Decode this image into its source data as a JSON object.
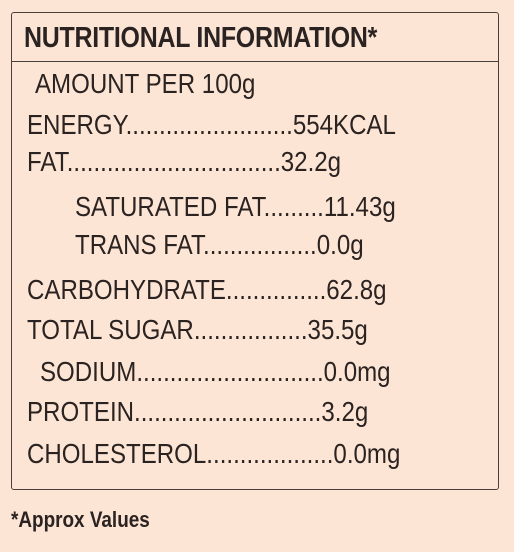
{
  "label": {
    "title": "NUTRITIONAL INFORMATION*",
    "amount": "AMOUNT PER 100g",
    "rows": [
      {
        "name": "ENERGY",
        "dots": ".........................",
        "value": "554KCAL"
      },
      {
        "name": "FAT",
        "dots": "................................",
        "value": "32.2g"
      },
      {
        "name": "SATURATED FAT",
        "dots": ".........",
        "value": "11.43g"
      },
      {
        "name": "TRANS FAT",
        "dots": ".................",
        "value": "0.0g"
      },
      {
        "name": "CARBOHYDRATE",
        "dots": "...............",
        "value": "62.8g"
      },
      {
        "name": "TOTAL SUGAR",
        "dots": ".................",
        "value": "35.5g"
      },
      {
        "name": "SODIUM",
        "dots": "............................",
        "value": "0.0mg"
      },
      {
        "name": "PROTEIN",
        "dots": "............................",
        "value": "3.2g"
      },
      {
        "name": "CHOLESTEROL",
        "dots": "...................",
        "value": "0.0mg"
      }
    ],
    "footnote": "*Approx Values"
  },
  "colors": {
    "background": "#fce5d5",
    "text": "#2b2321",
    "border": "#4a3f3c"
  }
}
